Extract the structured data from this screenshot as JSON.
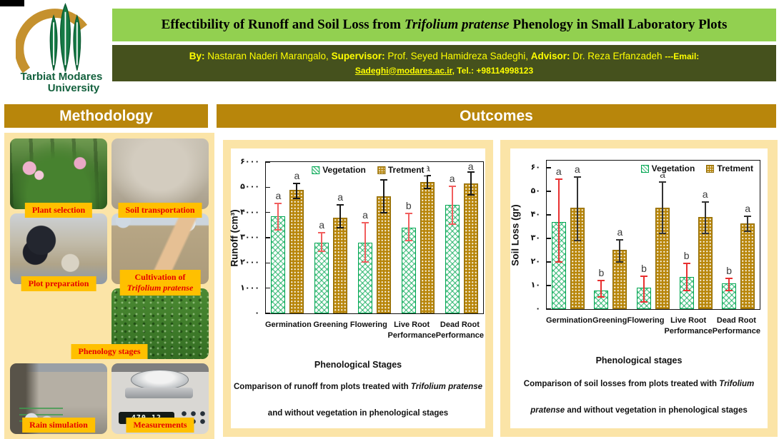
{
  "header": {
    "logo": {
      "line1": "Tarbiat Modares",
      "line2": "University"
    },
    "title": {
      "prefix": "Effectibility of Runoff and Soil Loss from ",
      "italic": "Trifolium pratense",
      "suffix": " Phenology in Small Laboratory Plots",
      "bg_color": "#92d050"
    },
    "authors": {
      "bg_color": "#45511d",
      "text_color": "#ffff00",
      "by_label": "By:",
      "by_name": " Nastaran Naderi Marangalo, ",
      "supervisor_label": "Supervisor:",
      "supervisor_name": " Prof. Seyed Hamidreza Sadeghi, ",
      "advisor_label": "Advisor:",
      "advisor_name": " Dr. Reza Erfanzadeh ",
      "email_label": "---Email:",
      "email_link": "Sadeghi@modares.ac.ir",
      "tel": ", Tel.: +98114998123"
    }
  },
  "sections": {
    "methodology_label": "Methodology",
    "outcomes_label": "Outcomes",
    "header_bg": "#b8860b",
    "panel_bg": "#fbe4a7"
  },
  "methodology": {
    "label_bg": "#ffc000",
    "label_color": "#e60000",
    "phenology_label": "Phenology stages",
    "photos": [
      {
        "name": "plant-selection",
        "label": "Plant selection"
      },
      {
        "name": "soil-transportation",
        "label": "Soil transportation"
      },
      {
        "name": "plot-preparation",
        "label": "Plot preparation"
      },
      {
        "name": "cultivation",
        "label": "Cultivation of",
        "label_italic": "Trifolium pratense"
      },
      {
        "name": "phenology-sparse-seedlings",
        "label": ""
      },
      {
        "name": "phenology-dense-clover",
        "label": ""
      },
      {
        "name": "rain-simulation",
        "label": "Rain simulation"
      },
      {
        "name": "measurements",
        "label": "Measurements",
        "scale_reading": "470.12"
      }
    ]
  },
  "chart_data": [
    {
      "type": "bar",
      "ylabel": "Runoff (cm³)",
      "xlabel": "Phenological Stages",
      "ylim": [
        0,
        6000
      ],
      "ytick_values": [
        0,
        1000,
        2000,
        3000,
        4000,
        5000,
        6000
      ],
      "ytick_labels": [
        "۰",
        "۱۰۰۰",
        "۲۰۰۰",
        "۳۰۰۰",
        "۴۰۰۰",
        "۵۰۰۰",
        "۶۰۰۰"
      ],
      "categories": [
        "Germination",
        "Greening",
        "Flowering",
        "Live Root Performance",
        "Dead Root Performance"
      ],
      "legend": [
        "Vegetation",
        "Tretment"
      ],
      "legend_position": "top-center",
      "grid": false,
      "series": [
        {
          "name": "Vegetation",
          "color": "#ffffff",
          "hatch": "green-crosshatch",
          "err_color": "#f15e5e",
          "values": [
            3850,
            2800,
            2800,
            3400,
            4300
          ],
          "err_low": [
            3300,
            2450,
            2050,
            2900,
            3550
          ],
          "err_high": [
            4350,
            3200,
            3600,
            3950,
            5050
          ],
          "letters": [
            "a",
            "a",
            "a",
            "b",
            "a"
          ]
        },
        {
          "name": "Tretment",
          "color": "#b8860b",
          "hatch": "white-dots",
          "err_color": "#1a1a1a",
          "values": [
            4900,
            3800,
            4650,
            5200,
            5150
          ],
          "err_low": [
            4550,
            3400,
            4000,
            4950,
            4700
          ],
          "err_high": [
            5150,
            4300,
            5300,
            5450,
            5600
          ],
          "letters": [
            "a",
            "a",
            "a",
            "a",
            "a"
          ]
        }
      ],
      "caption": {
        "prefix": "Comparison of runoff from plots treated with ",
        "italic": "Trifolium pratense",
        "suffix": " and without vegetation in phenological stages"
      }
    },
    {
      "type": "bar",
      "ylabel": "Soil Loss (gr)",
      "xlabel": "Phenological stages",
      "ylim": [
        0,
        63
      ],
      "ytick_values": [
        0,
        10,
        20,
        30,
        40,
        50,
        60
      ],
      "ytick_labels": [
        "۰",
        "۱۰",
        "۲۰",
        "۳۰",
        "۴۰",
        "۵۰",
        "۶۰"
      ],
      "categories": [
        "Germination",
        "Greening",
        "Flowering",
        "Live Root Performance",
        "Dead Root Performance"
      ],
      "legend": [
        "Vegetation",
        "Tretment"
      ],
      "legend_position": "top-right",
      "grid": false,
      "series": [
        {
          "name": "Vegetation",
          "color": "#ffffff",
          "hatch": "green-crosshatch",
          "err_color": "#e83030",
          "values": [
            37,
            8,
            9,
            13.5,
            11
          ],
          "err_low": [
            20,
            5,
            3,
            8,
            8
          ],
          "err_high": [
            55,
            12,
            14,
            19.5,
            13
          ],
          "letters": [
            "a",
            "b",
            "b",
            "b",
            "b"
          ]
        },
        {
          "name": "Tretment",
          "color": "#b8860b",
          "hatch": "white-dots",
          "err_color": "#333333",
          "values": [
            43,
            25,
            43,
            39,
            36.5
          ],
          "err_low": [
            29,
            20,
            32,
            32,
            33
          ],
          "err_high": [
            56,
            29.5,
            54,
            45.5,
            39.5
          ],
          "letters": [
            "a",
            "a",
            "a",
            "a",
            "a"
          ]
        }
      ],
      "caption": {
        "prefix": "Comparison of soil losses from plots treated with ",
        "italic": "Trifolium pratense",
        "suffix": " and without vegetation in phenological stages"
      }
    }
  ]
}
